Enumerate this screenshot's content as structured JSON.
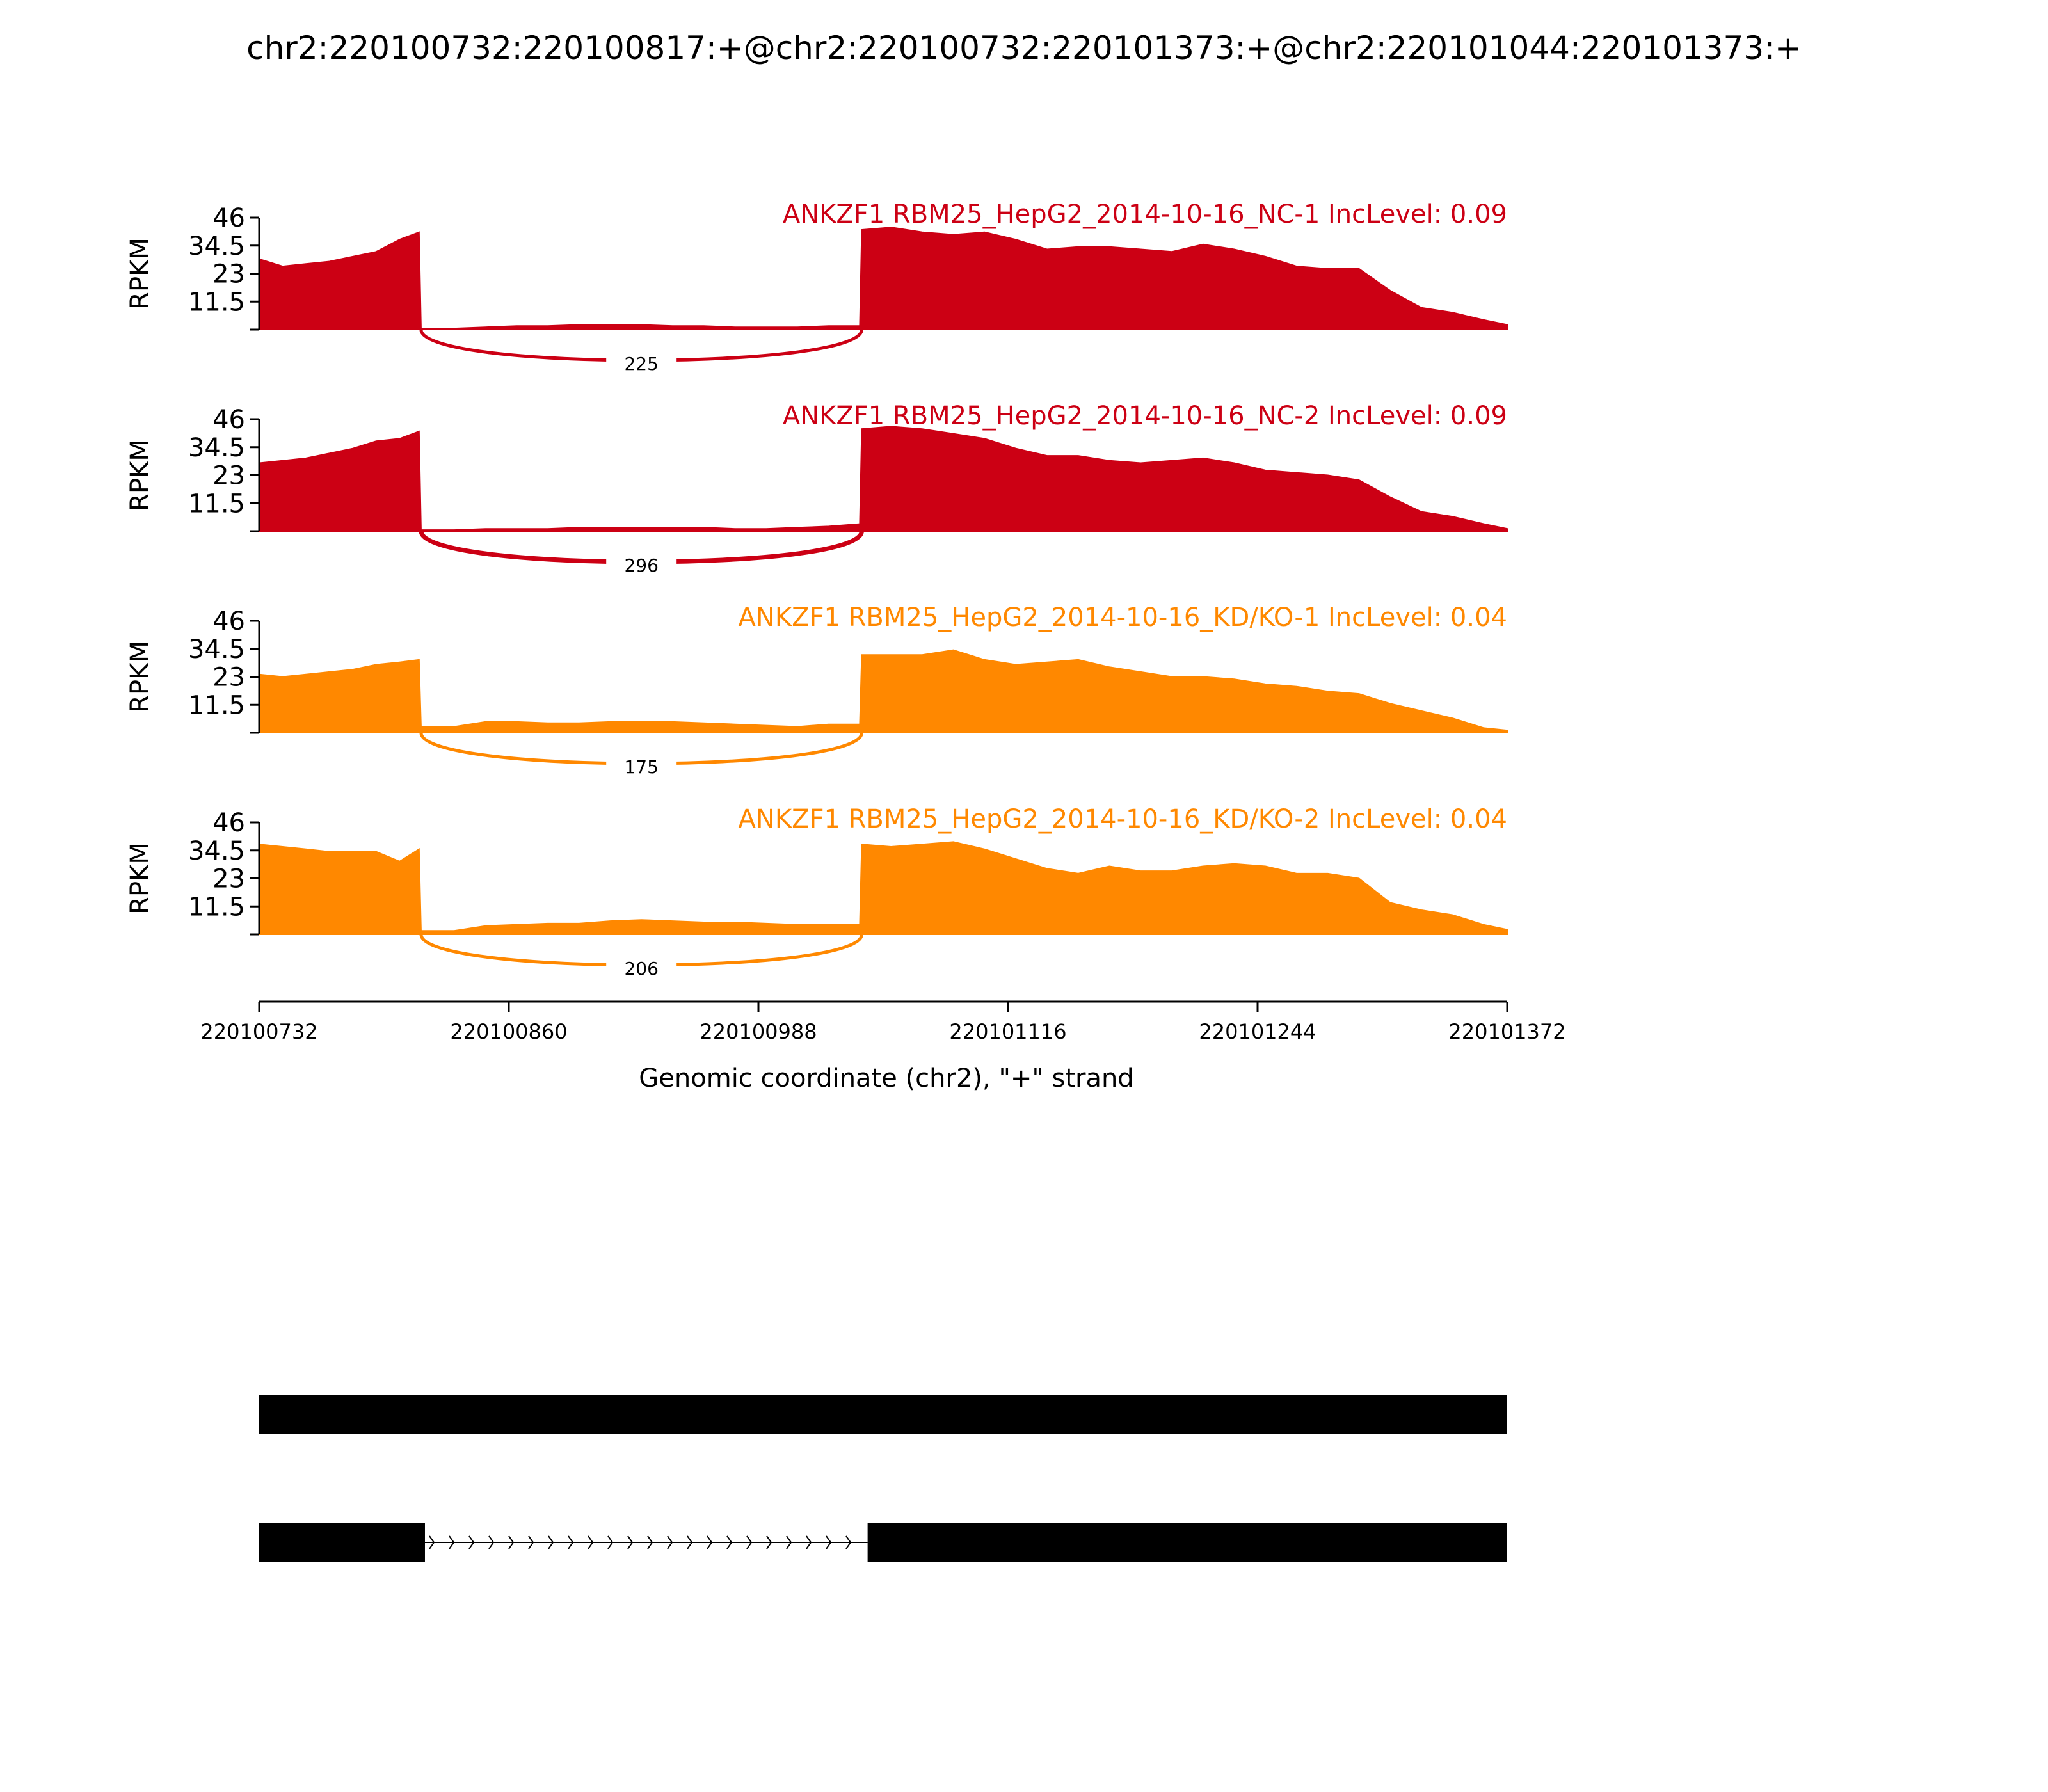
{
  "chart_data": {
    "type": "area",
    "title": "chr2:220100732:220100817:+@chr2:220100732:220101373:+@chr2:220101044:220101373:+",
    "xlabel": "Genomic coordinate (chr2), \"+\" strand",
    "ylabel": "RPKM",
    "xlim": [
      220100732,
      220101372
    ],
    "ylim": [
      0,
      46
    ],
    "x_ticks": [
      "220100732",
      "220100860",
      "220100988",
      "220101116",
      "220101244",
      "220101372"
    ],
    "y_ticks": [
      "11.5",
      "23",
      "34.5",
      "46"
    ],
    "x": [
      220100732,
      220100744,
      220100756,
      220100768,
      220100780,
      220100792,
      220100804,
      220100814,
      220100815,
      220100832,
      220100848,
      220100864,
      220100880,
      220100896,
      220100912,
      220100928,
      220100944,
      220100960,
      220100976,
      220100992,
      220101008,
      220101024,
      220101040,
      220101041,
      220101056,
      220101072,
      220101088,
      220101104,
      220101120,
      220101136,
      220101152,
      220101168,
      220101184,
      220101200,
      220101216,
      220101232,
      220101248,
      220101264,
      220101280,
      220101296,
      220101312,
      220101328,
      220101344,
      220101360,
      220101372
    ],
    "series": [
      {
        "name": "ANKZF1 RBM25_HepG2_2014-10-16_NC-1 IncLevel: 0.09",
        "color": "#cc0014",
        "values": [
          29,
          26,
          27,
          28,
          30,
          32,
          37,
          40,
          0.5,
          0.5,
          1,
          1.5,
          1.5,
          2,
          2,
          2,
          1.5,
          1.5,
          1,
          1,
          1,
          1.5,
          1.5,
          41,
          42,
          40,
          39,
          40,
          37,
          33,
          34,
          34,
          33,
          32,
          35,
          33,
          30,
          26,
          25,
          25,
          16,
          9,
          7,
          4,
          2
        ]
      },
      {
        "name": "ANKZF1 RBM25_HepG2_2014-10-16_NC-2 IncLevel: 0.09",
        "color": "#cc0014",
        "values": [
          28,
          29,
          30,
          32,
          34,
          37,
          38,
          41,
          0.5,
          0.5,
          1,
          1,
          1,
          1.5,
          1.5,
          1.5,
          1.5,
          1.5,
          1,
          1,
          1.5,
          2,
          3,
          42,
          43,
          42,
          40,
          38,
          34,
          31,
          31,
          29,
          28,
          29,
          30,
          28,
          25,
          24,
          23,
          21,
          14,
          8,
          6,
          3,
          1
        ]
      },
      {
        "name": "ANKZF1 RBM25_HepG2_2014-10-16_KD/KO-1 IncLevel: 0.04",
        "color": "#ff8800",
        "values": [
          24,
          23,
          24,
          25,
          26,
          28,
          29,
          30,
          2.5,
          2.5,
          4.5,
          4.5,
          4,
          4,
          4.5,
          4.5,
          4.5,
          4,
          3.5,
          3,
          2.5,
          3.5,
          3.5,
          32,
          32,
          32,
          34,
          30,
          28,
          29,
          30,
          27,
          25,
          23,
          23,
          22,
          20,
          19,
          17,
          16,
          12,
          9,
          6,
          2,
          1
        ]
      },
      {
        "name": "ANKZF1 RBM25_HepG2_2014-10-16_KD/KO-2 IncLevel: 0.04",
        "color": "#ff8800",
        "values": [
          37,
          36,
          35,
          34,
          34,
          34,
          30,
          35,
          1.5,
          1.5,
          3.5,
          4,
          4.5,
          4.5,
          5.5,
          6,
          5.5,
          5,
          5,
          4.5,
          4,
          4,
          4,
          37,
          36,
          37,
          38,
          35,
          31,
          27,
          25,
          28,
          26,
          26,
          28,
          29,
          28,
          25,
          25,
          23,
          13,
          10,
          8,
          4,
          2
        ]
      }
    ],
    "junctions": [
      {
        "label": "225",
        "start": 220100815,
        "end": 220101041
      },
      {
        "label": "296",
        "start": 220100815,
        "end": 220101041
      },
      {
        "label": "175",
        "start": 220100815,
        "end": 220101041
      },
      {
        "label": "206",
        "start": 220100815,
        "end": 220101041
      }
    ],
    "gene_models": [
      {
        "exons": [
          [
            220100732,
            220101372
          ]
        ]
      },
      {
        "exons": [
          [
            220100732,
            220100817
          ],
          [
            220101044,
            220101372
          ]
        ]
      }
    ]
  }
}
